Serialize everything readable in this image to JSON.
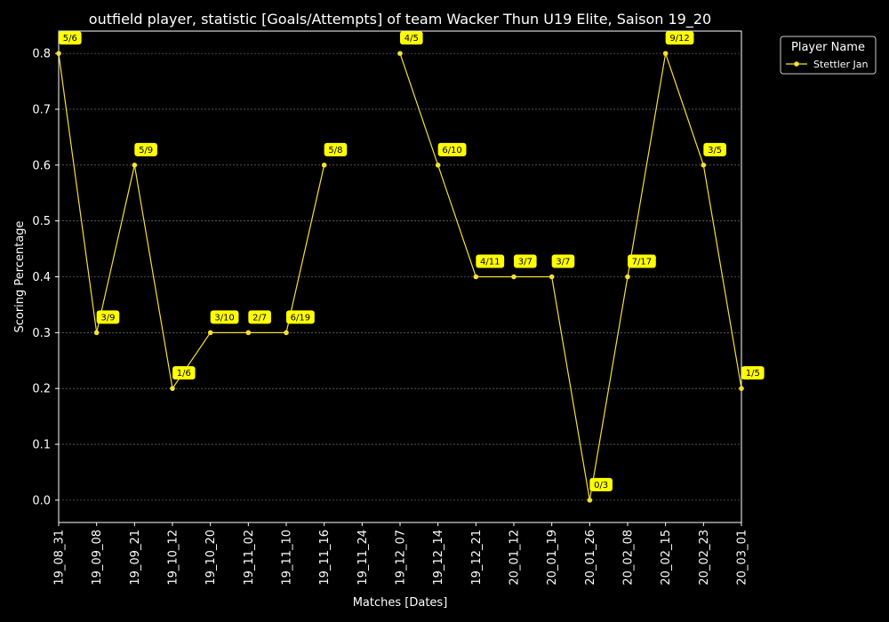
{
  "chart_data": {
    "type": "line",
    "title": "outfield player, statistic [Goals/Attempts] of team Wacker Thun U19 Elite, Saison 19_20",
    "xlabel": "Matches [Dates]",
    "ylabel": "Scoring Percentage",
    "ylim": [
      -0.04,
      0.84
    ],
    "yticks": [
      0.0,
      0.1,
      0.2,
      0.3,
      0.4,
      0.5,
      0.6,
      0.7,
      0.8
    ],
    "ytick_labels": [
      "0.0",
      "0.1",
      "0.2",
      "0.3",
      "0.4",
      "0.5",
      "0.6",
      "0.7",
      "0.8"
    ],
    "grid": true,
    "legend_title": "Player Name",
    "legend_position": "upper-right-outside",
    "categories": [
      "19_08_31",
      "19_09_08",
      "19_09_21",
      "19_10_12",
      "19_10_20",
      "19_11_02",
      "19_11_10",
      "19_11_16",
      "19_11_24",
      "19_12_07",
      "19_12_14",
      "19_12_21",
      "20_01_12",
      "20_01_19",
      "20_01_26",
      "20_02_08",
      "20_02_15",
      "20_02_23",
      "20_03_01"
    ],
    "series": [
      {
        "name": "Stettler Jan",
        "color": "#f5e033",
        "values": [
          0.8,
          0.3,
          0.6,
          0.2,
          0.3,
          0.3,
          0.3,
          0.6,
          null,
          0.8,
          0.6,
          0.4,
          0.4,
          0.4,
          0.0,
          0.4,
          0.8,
          0.6,
          0.2
        ],
        "labels": [
          "5/6",
          "3/9",
          "5/9",
          "1/6",
          "3/10",
          "2/7",
          "6/19",
          "5/8",
          null,
          "4/5",
          "6/10",
          "4/11",
          "3/7",
          "3/7",
          "0/3",
          "7/17",
          "9/12",
          "3/5",
          "1/5"
        ]
      }
    ]
  }
}
